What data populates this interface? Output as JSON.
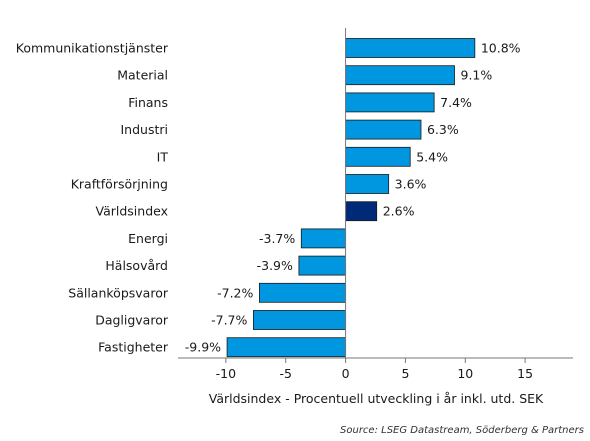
{
  "chart_data": {
    "type": "bar",
    "orientation": "horizontal",
    "categories": [
      "Kommunikationstjänster",
      "Material",
      "Finans",
      "Industri",
      "IT",
      "Kraftförsörjning",
      "Världsindex",
      "Energi",
      "Hälsovård",
      "Sällanköpsvaror",
      "Dagligvaror",
      "Fastigheter"
    ],
    "values": [
      10.8,
      9.1,
      7.4,
      6.3,
      5.4,
      3.6,
      2.6,
      -3.7,
      -3.9,
      -7.2,
      -7.7,
      -9.9
    ],
    "value_labels": [
      "10.8%",
      "9.1%",
      "7.4%",
      "6.3%",
      "5.4%",
      "3.6%",
      "2.6%",
      "-3.7%",
      "-3.9%",
      "-7.2%",
      "-7.7%",
      "-9.9%"
    ],
    "highlight_category": "Världsindex",
    "xlabel": "Världsindex - Procentuell utveckling i år inkl. utd. SEK",
    "ylabel": "",
    "xlim": [
      -14,
      19
    ],
    "xticks": [
      -10,
      -5,
      0,
      5,
      10,
      15
    ],
    "xtick_labels": [
      "-10",
      "-5",
      "0",
      "5",
      "10",
      "15"
    ],
    "grid": false,
    "colors": {
      "bar": "#0096e0",
      "highlight": "#002a78",
      "bar_edge": "#1a1a1a",
      "axis": "#777777"
    }
  },
  "source": "Source: LSEG Datastream, Söderberg & Partners"
}
